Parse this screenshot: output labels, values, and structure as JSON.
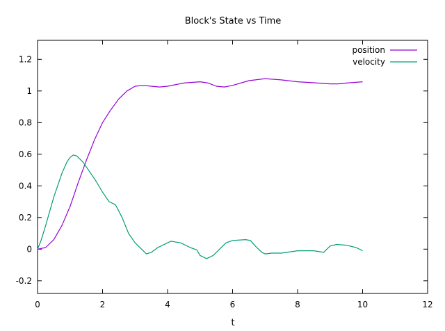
{
  "chart_data": {
    "type": "line",
    "title": "Block's State vs Time",
    "xlabel": "t",
    "ylabel": "",
    "xlim": [
      0,
      12
    ],
    "ylim": [
      -0.28,
      1.32
    ],
    "xticks": [
      0,
      2,
      4,
      6,
      8,
      10,
      12
    ],
    "yticks": [
      -0.2,
      0,
      0.2,
      0.4,
      0.6,
      0.8,
      1,
      1.2
    ],
    "xtick_labels": [
      "0",
      "2",
      "4",
      "6",
      "8",
      "10",
      "12"
    ],
    "ytick_labels": [
      "-0.2",
      "0",
      "0.2",
      "0.4",
      "0.6",
      "0.8",
      "1",
      "1.2"
    ],
    "grid": false,
    "legend_position": "top-right",
    "series": [
      {
        "name": "position",
        "color": "#9400d3",
        "points": [
          [
            0,
            0
          ],
          [
            0.25,
            0.01
          ],
          [
            0.5,
            0.06
          ],
          [
            0.75,
            0.15
          ],
          [
            1.0,
            0.27
          ],
          [
            1.25,
            0.42
          ],
          [
            1.5,
            0.56
          ],
          [
            1.75,
            0.69
          ],
          [
            2.0,
            0.8
          ],
          [
            2.25,
            0.88
          ],
          [
            2.5,
            0.95
          ],
          [
            2.75,
            1.0
          ],
          [
            3.0,
            1.03
          ],
          [
            3.25,
            1.035
          ],
          [
            3.5,
            1.03
          ],
          [
            3.75,
            1.025
          ],
          [
            4.0,
            1.03
          ],
          [
            4.5,
            1.05
          ],
          [
            5.0,
            1.058
          ],
          [
            5.25,
            1.05
          ],
          [
            5.5,
            1.03
          ],
          [
            5.75,
            1.025
          ],
          [
            6.0,
            1.035
          ],
          [
            6.5,
            1.065
          ],
          [
            7.0,
            1.078
          ],
          [
            7.5,
            1.07
          ],
          [
            8.0,
            1.058
          ],
          [
            8.5,
            1.052
          ],
          [
            9.0,
            1.045
          ],
          [
            9.25,
            1.045
          ],
          [
            9.5,
            1.05
          ],
          [
            10.0,
            1.058
          ]
        ]
      },
      {
        "name": "velocity",
        "color": "#009e73",
        "points": [
          [
            0,
            0
          ],
          [
            0.1,
            0.05
          ],
          [
            0.25,
            0.15
          ],
          [
            0.5,
            0.33
          ],
          [
            0.75,
            0.48
          ],
          [
            0.9,
            0.55
          ],
          [
            1.0,
            0.58
          ],
          [
            1.1,
            0.595
          ],
          [
            1.2,
            0.59
          ],
          [
            1.4,
            0.55
          ],
          [
            1.6,
            0.49
          ],
          [
            1.8,
            0.43
          ],
          [
            2.0,
            0.36
          ],
          [
            2.1,
            0.33
          ],
          [
            2.2,
            0.3
          ],
          [
            2.4,
            0.28
          ],
          [
            2.6,
            0.2
          ],
          [
            2.8,
            0.1
          ],
          [
            3.0,
            0.04
          ],
          [
            3.2,
            0.0
          ],
          [
            3.35,
            -0.03
          ],
          [
            3.5,
            -0.02
          ],
          [
            3.7,
            0.01
          ],
          [
            4.0,
            0.04
          ],
          [
            4.1,
            0.05
          ],
          [
            4.4,
            0.04
          ],
          [
            4.7,
            0.01
          ],
          [
            4.9,
            -0.005
          ],
          [
            5.0,
            -0.04
          ],
          [
            5.2,
            -0.06
          ],
          [
            5.4,
            -0.04
          ],
          [
            5.6,
            0.0
          ],
          [
            5.8,
            0.04
          ],
          [
            6.0,
            0.055
          ],
          [
            6.4,
            0.06
          ],
          [
            6.55,
            0.055
          ],
          [
            6.7,
            0.02
          ],
          [
            6.9,
            -0.02
          ],
          [
            7.0,
            -0.03
          ],
          [
            7.2,
            -0.025
          ],
          [
            7.5,
            -0.025
          ],
          [
            8.0,
            -0.01
          ],
          [
            8.5,
            -0.01
          ],
          [
            8.8,
            -0.02
          ],
          [
            9.0,
            0.02
          ],
          [
            9.2,
            0.03
          ],
          [
            9.5,
            0.025
          ],
          [
            9.8,
            0.01
          ],
          [
            10.0,
            -0.01
          ]
        ]
      }
    ]
  }
}
